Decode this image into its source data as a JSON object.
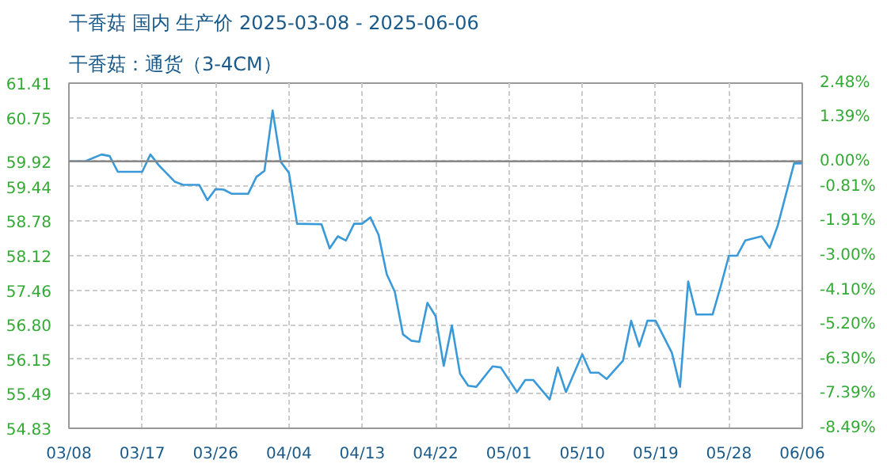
{
  "chart_data": {
    "type": "line",
    "title": "干香菇 国内 生产价 2025-03-08 - 2025-06-06",
    "subtitle": "干香菇：通货（3-4CM）",
    "x": [
      "2025-03-08",
      "2025-03-10",
      "2025-03-12",
      "2025-03-13",
      "2025-03-14",
      "2025-03-17",
      "2025-03-18",
      "2025-03-19",
      "2025-03-21",
      "2025-03-22",
      "2025-03-24",
      "2025-03-25",
      "2025-03-26",
      "2025-03-27",
      "2025-03-28",
      "2025-03-30",
      "2025-03-31",
      "2025-04-01",
      "2025-04-02",
      "2025-04-03",
      "2025-04-04",
      "2025-04-05",
      "2025-04-08",
      "2025-04-09",
      "2025-04-10",
      "2025-04-11",
      "2025-04-12",
      "2025-04-13",
      "2025-04-14",
      "2025-04-15",
      "2025-04-16",
      "2025-04-17",
      "2025-04-18",
      "2025-04-19",
      "2025-04-20",
      "2025-04-21",
      "2025-04-22",
      "2025-04-23",
      "2025-04-24",
      "2025-04-25",
      "2025-04-26",
      "2025-04-27",
      "2025-04-29",
      "2025-04-30",
      "2025-05-02",
      "2025-05-03",
      "2025-05-04",
      "2025-05-06",
      "2025-05-07",
      "2025-05-08",
      "2025-05-10",
      "2025-05-11",
      "2025-05-12",
      "2025-05-13",
      "2025-05-15",
      "2025-05-16",
      "2025-05-17",
      "2025-05-18",
      "2025-05-19",
      "2025-05-21",
      "2025-05-22",
      "2025-05-23",
      "2025-05-24",
      "2025-05-26",
      "2025-05-27",
      "2025-05-28",
      "2025-05-29",
      "2025-05-30",
      "2025-06-01",
      "2025-06-02",
      "2025-06-03",
      "2025-06-05",
      "2025-06-06"
    ],
    "series": [
      {
        "color": "#3a9ad9",
        "values": [
          59.92,
          59.92,
          60.05,
          60.02,
          59.72,
          59.72,
          60.05,
          59.85,
          59.53,
          59.47,
          59.47,
          59.18,
          59.39,
          59.38,
          59.3,
          59.3,
          59.62,
          59.74,
          60.89,
          59.91,
          59.7,
          58.73,
          58.72,
          58.26,
          58.49,
          58.41,
          58.73,
          58.73,
          58.85,
          58.52,
          57.77,
          57.43,
          56.62,
          56.5,
          56.48,
          57.22,
          56.97,
          56.02,
          56.79,
          55.87,
          55.64,
          55.62,
          56.01,
          55.99,
          55.52,
          55.75,
          55.75,
          55.38,
          55.99,
          55.52,
          56.24,
          55.89,
          55.89,
          55.77,
          56.12,
          56.88,
          56.39,
          56.88,
          56.88,
          56.27,
          55.62,
          57.63,
          57.0,
          57.0,
          57.54,
          58.12,
          58.12,
          58.41,
          58.49,
          58.27,
          58.7,
          59.88,
          59.88
        ]
      }
    ],
    "xlim": [
      "2025-03-08",
      "2025-06-06"
    ],
    "xticks": [
      {
        "value": "2025-03-08",
        "label": "03/08"
      },
      {
        "value": "2025-03-17",
        "label": "03/17"
      },
      {
        "value": "2025-03-26",
        "label": "03/26"
      },
      {
        "value": "2025-04-04",
        "label": "04/04"
      },
      {
        "value": "2025-04-13",
        "label": "04/13"
      },
      {
        "value": "2025-04-22",
        "label": "04/22"
      },
      {
        "value": "2025-05-01",
        "label": "05/01"
      },
      {
        "value": "2025-05-10",
        "label": "05/10"
      },
      {
        "value": "2025-05-19",
        "label": "05/19"
      },
      {
        "value": "2025-05-28",
        "label": "05/28"
      },
      {
        "value": "2025-06-06",
        "label": "06/06"
      }
    ],
    "ylim": [
      54.83,
      61.41
    ],
    "yticks": [
      {
        "value": 54.83,
        "label": "54.83"
      },
      {
        "value": 55.49,
        "label": "55.49"
      },
      {
        "value": 56.15,
        "label": "56.15"
      },
      {
        "value": 56.8,
        "label": "56.80"
      },
      {
        "value": 57.46,
        "label": "57.46"
      },
      {
        "value": 58.12,
        "label": "58.12"
      },
      {
        "value": 58.78,
        "label": "58.78"
      },
      {
        "value": 59.44,
        "label": "59.44"
      },
      {
        "value": 59.92,
        "label": "59.92"
      },
      {
        "value": 60.75,
        "label": "60.75"
      },
      {
        "value": 61.41,
        "label": "61.41"
      }
    ],
    "y2lim": [
      -8.49,
      2.48
    ],
    "y2ticks": [
      {
        "value": -8.49,
        "label": "-8.49%"
      },
      {
        "value": -7.39,
        "label": "-7.39%"
      },
      {
        "value": -6.3,
        "label": "-6.30%"
      },
      {
        "value": -5.2,
        "label": "-5.20%"
      },
      {
        "value": -4.1,
        "label": "-4.10%"
      },
      {
        "value": -3.0,
        "label": "-3.00%"
      },
      {
        "value": -1.91,
        "label": "-1.91%"
      },
      {
        "value": -0.81,
        "label": "-0.81%"
      },
      {
        "value": 0,
        "label": "0.00%"
      },
      {
        "value": 1.39,
        "label": "1.39%"
      },
      {
        "value": 2.48,
        "label": "2.48%"
      }
    ],
    "ref_lines": [
      {
        "axis": "y",
        "value": 59.92,
        "color": "#888888"
      }
    ],
    "grid": true,
    "marker": "none",
    "line_style": "solid"
  }
}
